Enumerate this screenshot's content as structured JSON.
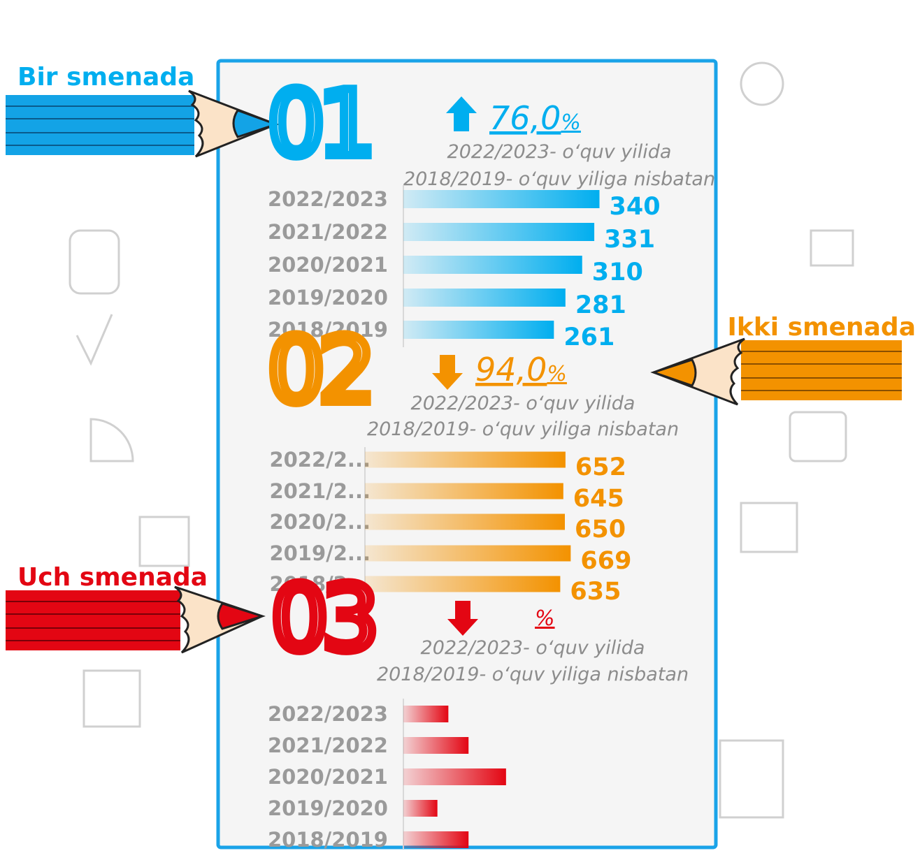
{
  "chart_data": [
    {
      "type": "bar",
      "label": "Bir smenada",
      "section_number": "01",
      "trend": "up",
      "percent_value": "76,0",
      "percent_sign": "%",
      "subtitle_lines": [
        "2022/2023- o‘quv yilida",
        "2018/2019- o‘quv yiliga nisbatan"
      ],
      "color": "#00aeef",
      "categories": [
        "2022/2023",
        "2021/2022",
        "2020/2021",
        "2019/2020",
        "2018/2019"
      ],
      "values": [
        340,
        331,
        310,
        281,
        261
      ],
      "xlim": [
        0,
        400
      ]
    },
    {
      "type": "bar",
      "label": "Ikki smenada",
      "section_number": "02",
      "trend": "down",
      "percent_value": "94,0",
      "percent_sign": "%",
      "subtitle_lines": [
        "2022/2023- o‘quv yilida",
        "2018/2019- o‘quv yiliga nisbatan"
      ],
      "color": "#f39200",
      "categories": [
        "2022/2...",
        "2021/2...",
        "2020/2...",
        "2019/2...",
        "2018/2..."
      ],
      "values": [
        652,
        645,
        650,
        669,
        635
      ],
      "xlim": [
        0,
        1000
      ]
    },
    {
      "type": "bar",
      "label": "Uch smenada",
      "section_number": "03",
      "trend": "down",
      "percent_sign": "%",
      "subtitle_lines": [
        "2022/2023- o‘quv yilida",
        "2018/2019- o‘quv yiliga nisbatan"
      ],
      "color": "#e30613",
      "categories": [
        "2022/2023",
        "2021/2022",
        "2020/2021",
        "2019/2020",
        "2018/2019"
      ],
      "values": [
        78,
        113,
        178,
        59,
        113
      ],
      "xlim": [
        0,
        400
      ]
    }
  ]
}
